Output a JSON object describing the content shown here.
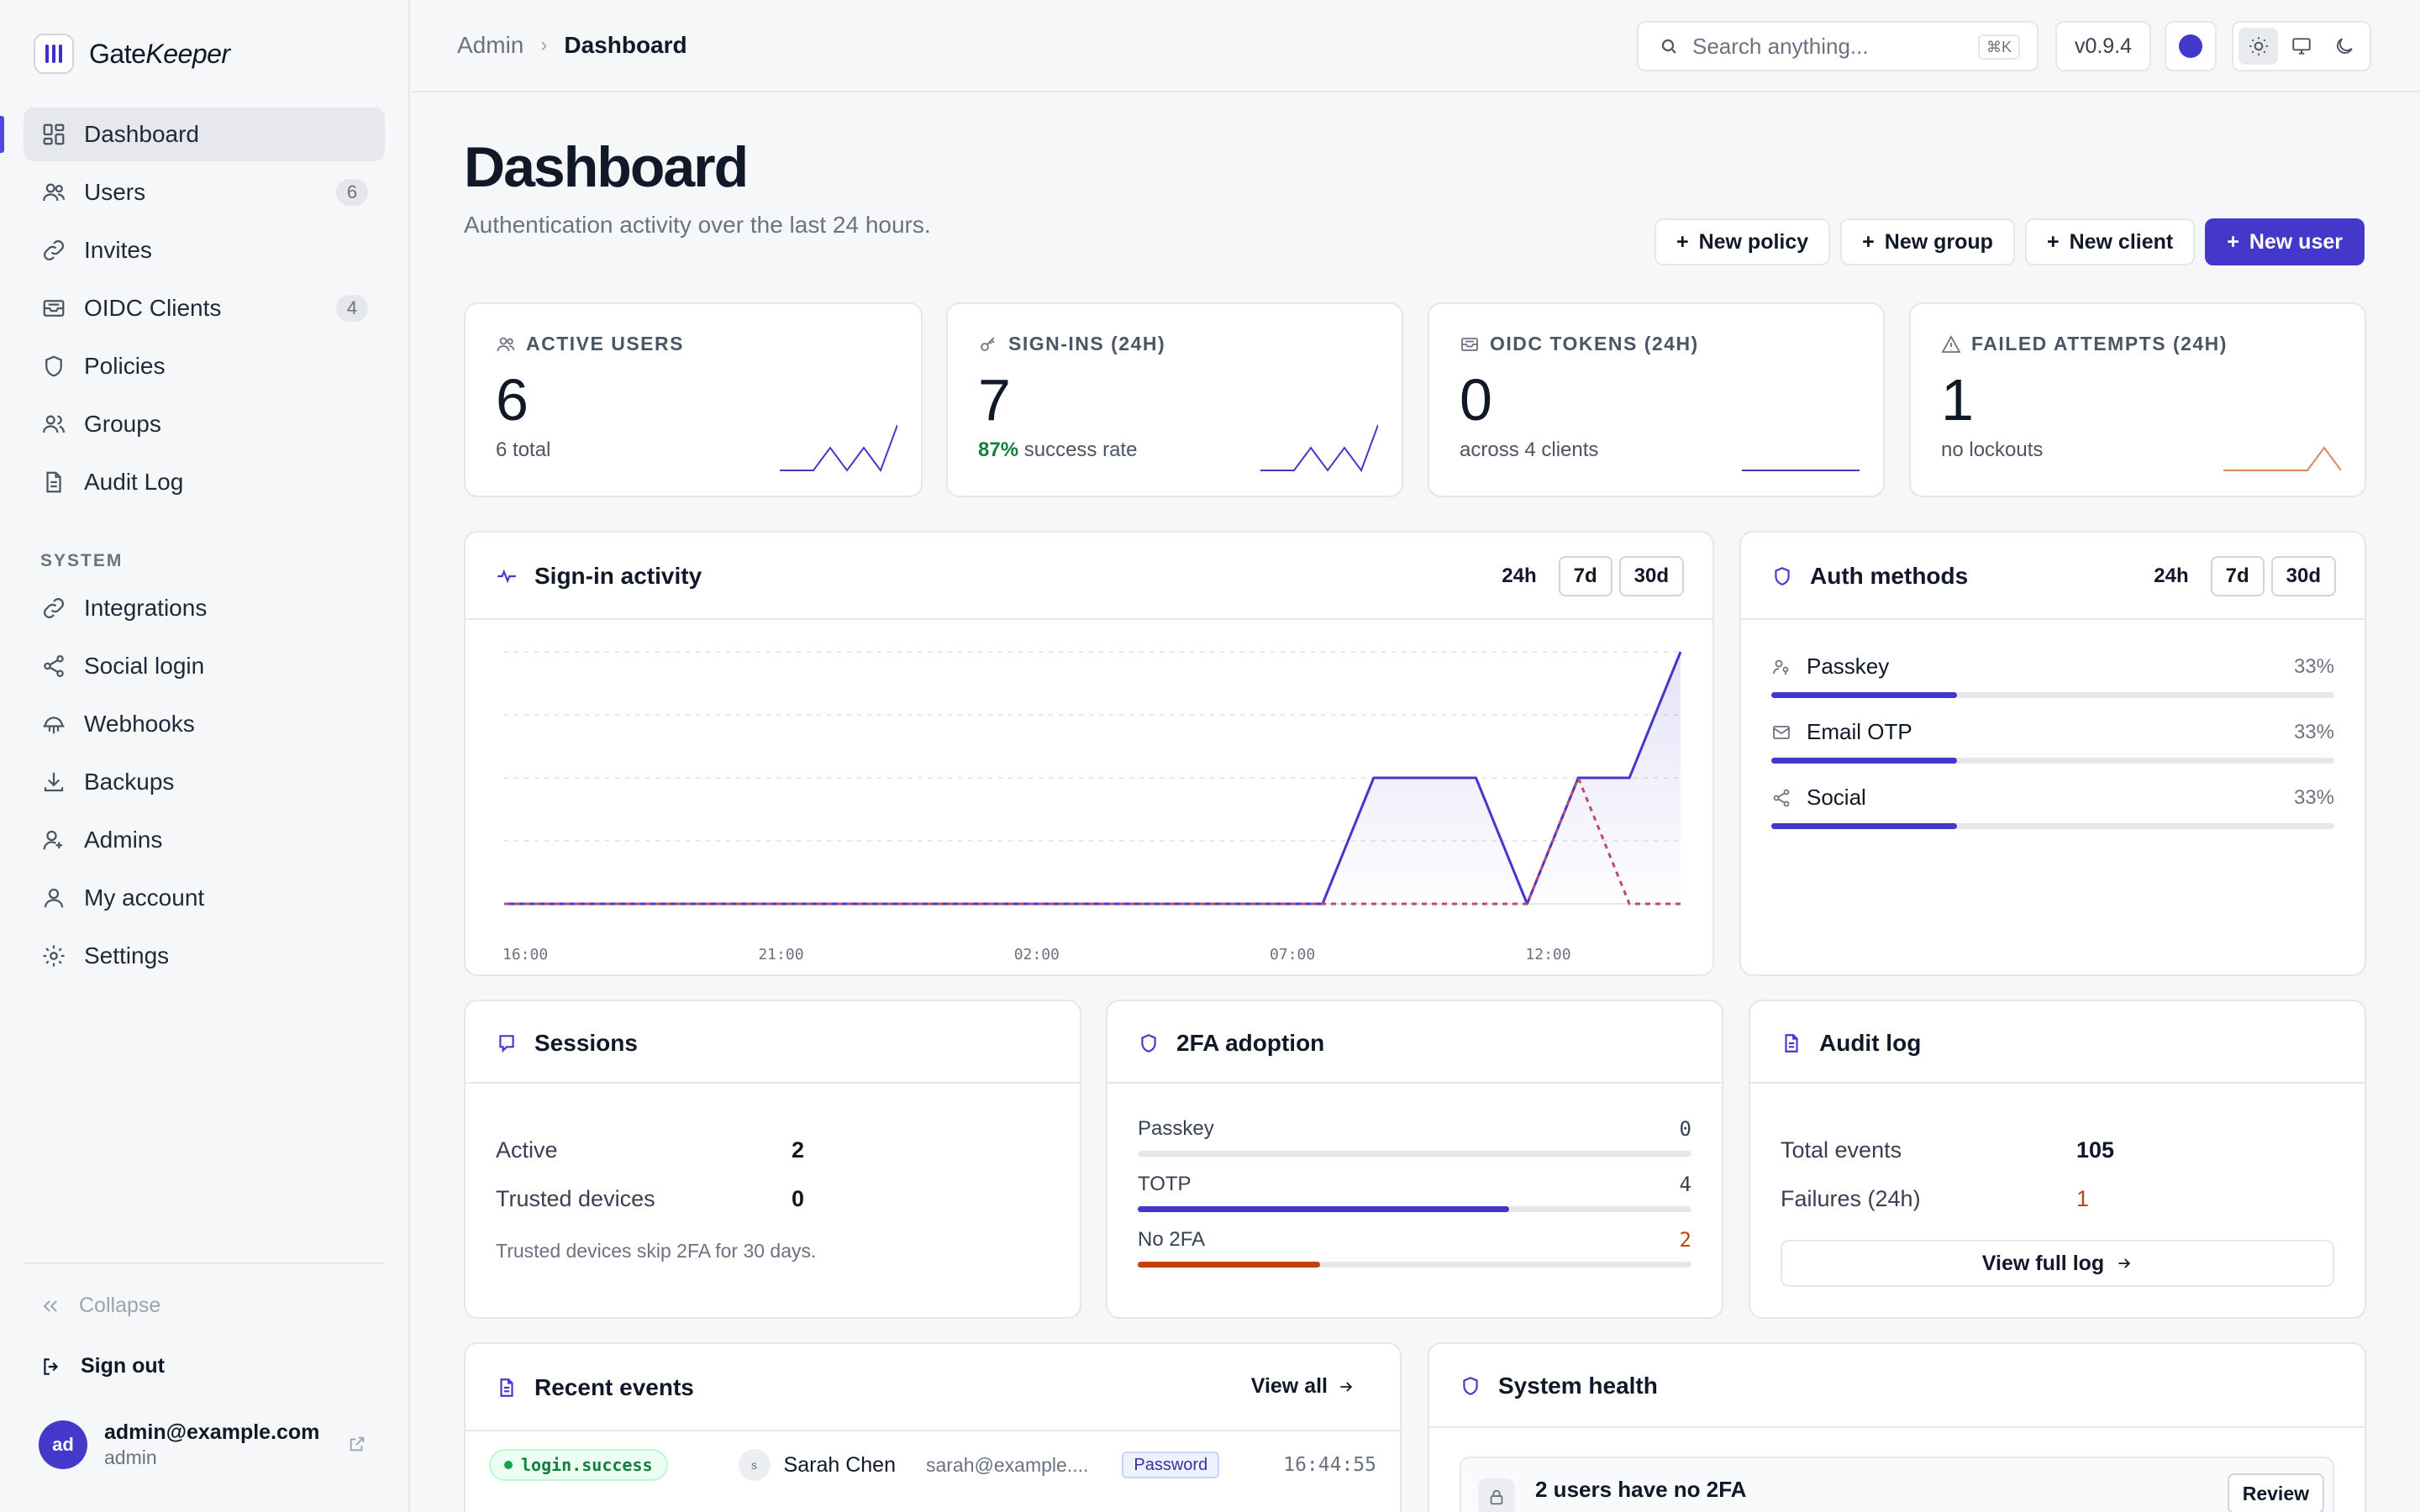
{
  "app": {
    "name_part1": "Gate",
    "name_part2": "Keeper"
  },
  "sidebar": {
    "items": [
      {
        "label": "Dashboard",
        "icon": "grid-icon",
        "active": true
      },
      {
        "label": "Users",
        "icon": "users-icon",
        "count": "6"
      },
      {
        "label": "Invites",
        "icon": "link-icon"
      },
      {
        "label": "OIDC Clients",
        "icon": "mailbox-icon",
        "count": "4"
      },
      {
        "label": "Policies",
        "icon": "shield-icon"
      },
      {
        "label": "Groups",
        "icon": "groups-icon"
      },
      {
        "label": "Audit Log",
        "icon": "document-icon"
      }
    ],
    "section_label": "SYSTEM",
    "system_items": [
      {
        "label": "Integrations",
        "icon": "link-icon"
      },
      {
        "label": "Social login",
        "icon": "share-icon"
      },
      {
        "label": "Webhooks",
        "icon": "webhook-icon"
      },
      {
        "label": "Backups",
        "icon": "download-icon"
      },
      {
        "label": "Admins",
        "icon": "admin-icon"
      },
      {
        "label": "My account",
        "icon": "user-icon"
      },
      {
        "label": "Settings",
        "icon": "gear-icon"
      }
    ],
    "collapse_label": "Collapse",
    "signout_label": "Sign out",
    "account": {
      "initials": "ad",
      "email": "admin@example.com",
      "role": "admin"
    }
  },
  "topbar": {
    "breadcrumb_root": "Admin",
    "breadcrumb_current": "Dashboard",
    "search_placeholder": "Search anything...",
    "search_shortcut": "⌘K",
    "version": "v0.9.4"
  },
  "header": {
    "title": "Dashboard",
    "subtitle": "Authentication activity over the last 24 hours.",
    "actions": [
      "New policy",
      "New group",
      "New client",
      "New user"
    ]
  },
  "stats": [
    {
      "label": "ACTIVE USERS",
      "icon": "users-icon",
      "value": "6",
      "foot": "6 total",
      "spark": [
        0,
        0,
        0,
        1,
        0,
        1,
        0,
        2
      ],
      "color": "#4338ca"
    },
    {
      "label": "SIGN-INS (24H)",
      "icon": "key-icon",
      "value": "7",
      "foot_strong": "87%",
      "foot": " success rate",
      "spark": [
        0,
        0,
        0,
        1,
        0,
        1,
        0,
        2
      ],
      "color": "#4338ca"
    },
    {
      "label": "OIDC TOKENS (24H)",
      "icon": "mailbox-icon",
      "value": "0",
      "foot": "across 4 clients",
      "spark": [
        0,
        0,
        0,
        0,
        0,
        0,
        0,
        0
      ],
      "color": "#4338ca"
    },
    {
      "label": "FAILED ATTEMPTS (24H)",
      "icon": "warning-icon",
      "value": "1",
      "foot": "no lockouts",
      "spark": [
        0,
        0,
        0,
        0,
        0,
        0,
        1,
        0
      ],
      "color": "#d9865c"
    }
  ],
  "signin_panel": {
    "title": "Sign-in activity",
    "ranges": [
      "24h",
      "7d",
      "30d"
    ]
  },
  "auth_panel": {
    "title": "Auth methods",
    "ranges": [
      "24h",
      "7d",
      "30d"
    ],
    "methods": [
      {
        "name": "Passkey",
        "icon": "passkey-icon",
        "percent": "33%",
        "fraction": 0.33
      },
      {
        "name": "Email OTP",
        "icon": "mail-icon",
        "percent": "33%",
        "fraction": 0.33
      },
      {
        "name": "Social",
        "icon": "share-icon",
        "percent": "33%",
        "fraction": 0.33
      }
    ]
  },
  "chart_data": {
    "type": "line",
    "x_ticks": [
      "16:00",
      "21:00",
      "02:00",
      "07:00",
      "12:00"
    ],
    "series": [
      {
        "style": "solid",
        "color": "#4338ca",
        "values": [
          0,
          0,
          0,
          0,
          0,
          0,
          0,
          0,
          0,
          0,
          0,
          0,
          0,
          0,
          0,
          0,
          0,
          1,
          1,
          1,
          0,
          1,
          1,
          2
        ]
      },
      {
        "style": "dashed",
        "color": "#be4a73",
        "values": [
          0,
          0,
          0,
          0,
          0,
          0,
          0,
          0,
          0,
          0,
          0,
          0,
          0,
          0,
          0,
          0,
          0,
          0,
          0,
          0,
          0,
          1,
          0,
          0
        ]
      }
    ],
    "ylim": [
      0,
      2
    ],
    "grid": true,
    "legend": "none"
  },
  "sessions": {
    "title": "Sessions",
    "rows": [
      {
        "label": "Active",
        "value": "2"
      },
      {
        "label": "Trusted devices",
        "value": "0"
      }
    ],
    "note": "Trusted devices skip 2FA for 30 days."
  },
  "twofa": {
    "title": "2FA adoption",
    "rows": [
      {
        "label": "Passkey",
        "value": "0",
        "fraction": 0,
        "color": "#4338ca"
      },
      {
        "label": "TOTP",
        "value": "4",
        "fraction": 0.67,
        "color": "#4338ca"
      },
      {
        "label": "No 2FA",
        "value": "2",
        "fraction": 0.33,
        "color": "#c2410c"
      }
    ]
  },
  "audit": {
    "title": "Audit log",
    "rows": [
      {
        "label": "Total events",
        "value": "105"
      },
      {
        "label": "Failures (24h)",
        "value": "1",
        "color": "#c2410c"
      }
    ],
    "button": "View full log"
  },
  "recent_events": {
    "title": "Recent events",
    "view_all": "View all",
    "events": [
      {
        "type": "login.success",
        "initial": "s",
        "name": "Sarah Chen",
        "email": "sarah@example....",
        "method": "Password",
        "time": "16:44:55"
      }
    ]
  },
  "system_health": {
    "title": "System health",
    "alert": "2 users have no 2FA",
    "action": "Review"
  }
}
